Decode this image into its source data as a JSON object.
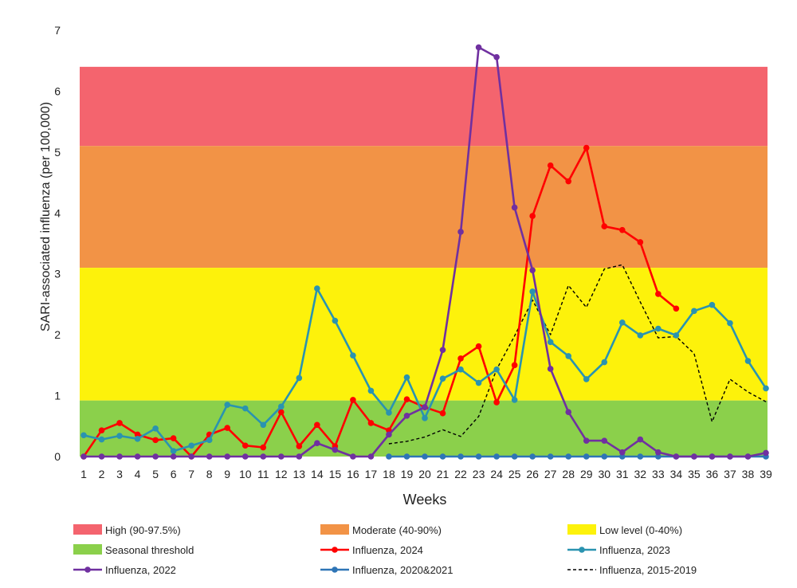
{
  "chart_data": {
    "type": "line",
    "xlabel": "Weeks",
    "ylabel": "SARI-associated influenza (per 100,000)",
    "xlim": [
      1,
      39
    ],
    "ylim": [
      0,
      7
    ],
    "x_ticks": [
      "1",
      "2",
      "3",
      "4",
      "5",
      "6",
      "7",
      "8",
      "9",
      "10",
      "11",
      "12",
      "13",
      "14",
      "15",
      "16",
      "17",
      "18",
      "19",
      "20",
      "21",
      "22",
      "23",
      "24",
      "25",
      "26",
      "27",
      "28",
      "29",
      "30",
      "31",
      "32",
      "33",
      "34",
      "35",
      "36",
      "37",
      "38",
      "39"
    ],
    "y_ticks": [
      "0",
      "1",
      "2",
      "3",
      "4",
      "5",
      "6",
      "7"
    ],
    "grid": false,
    "legend_position": "bottom",
    "bands": [
      {
        "name": "High (90-97.5%)",
        "from": 5.1,
        "to": 6.4,
        "color": "#f4646e"
      },
      {
        "name": "Moderate (40-90%)",
        "from": 3.1,
        "to": 5.1,
        "color": "#f29346"
      },
      {
        "name": "Low level (0-40%)",
        "from": 0.92,
        "to": 3.1,
        "color": "#fdf20b"
      },
      {
        "name": "Seasonal threshold",
        "from": 0,
        "to": 0.92,
        "color": "#8bd04b"
      }
    ],
    "series": [
      {
        "name": "Influenza, 2024",
        "color": "#ff0000",
        "style": "solid",
        "markers": true,
        "x": [
          1,
          2,
          3,
          4,
          5,
          6,
          7,
          8,
          9,
          10,
          11,
          12,
          13,
          14,
          15,
          16,
          17,
          18,
          19,
          20,
          21,
          22,
          23,
          24,
          25,
          26,
          27,
          28,
          29,
          30,
          31,
          32,
          33,
          34
        ],
        "y": [
          0,
          0.43,
          0.55,
          0.36,
          0.27,
          0.3,
          0,
          0.36,
          0.47,
          0.18,
          0.15,
          0.73,
          0.17,
          0.52,
          0.17,
          0.93,
          0.55,
          0.43,
          0.94,
          0.81,
          0.71,
          1.61,
          1.81,
          0.89,
          1.5,
          3.95,
          4.78,
          4.52,
          5.07,
          3.78,
          3.72,
          3.52,
          2.67,
          2.43
        ]
      },
      {
        "name": "Influenza, 2023",
        "color": "#2a93b0",
        "style": "solid",
        "markers": true,
        "x": [
          1,
          2,
          3,
          4,
          5,
          6,
          7,
          8,
          9,
          10,
          11,
          12,
          13,
          14,
          15,
          16,
          17,
          18,
          19,
          20,
          21,
          22,
          23,
          24,
          25,
          26,
          27,
          28,
          29,
          30,
          31,
          32,
          33,
          34,
          35,
          36,
          37,
          38,
          39
        ],
        "y": [
          0.35,
          0.28,
          0.34,
          0.29,
          0.46,
          0.09,
          0.18,
          0.27,
          0.85,
          0.79,
          0.52,
          0.82,
          1.29,
          2.76,
          2.23,
          1.66,
          1.08,
          0.72,
          1.3,
          0.63,
          1.28,
          1.43,
          1.21,
          1.43,
          0.93,
          2.71,
          1.88,
          1.65,
          1.27,
          1.55,
          2.2,
          1.99,
          2.1,
          1.99,
          2.39,
          2.49,
          2.19,
          1.57,
          1.12
        ]
      },
      {
        "name": "Influenza, 2022",
        "color": "#7030a0",
        "style": "solid",
        "markers": true,
        "x": [
          1,
          2,
          3,
          4,
          5,
          6,
          7,
          8,
          9,
          10,
          11,
          12,
          13,
          14,
          15,
          16,
          17,
          18,
          19,
          20,
          21,
          22,
          23,
          24,
          25,
          26,
          27,
          28,
          29,
          30,
          31,
          32,
          33,
          34,
          35,
          36,
          37,
          38,
          39
        ],
        "y": [
          0,
          0,
          0,
          0,
          0,
          0,
          0,
          0,
          0,
          0,
          0,
          0,
          0,
          0.22,
          0.11,
          0,
          0,
          0.36,
          0.67,
          0.81,
          1.75,
          3.69,
          6.72,
          6.56,
          4.09,
          3.06,
          1.44,
          0.73,
          0.26,
          0.26,
          0.07,
          0.28,
          0.07,
          0,
          0,
          0,
          0,
          0,
          0.06
        ]
      },
      {
        "name": "Influenza, 2020&2021",
        "color": "#2e75b6",
        "style": "solid",
        "markers": true,
        "x": [
          18,
          19,
          20,
          21,
          22,
          23,
          24,
          25,
          26,
          27,
          28,
          29,
          30,
          31,
          32,
          33,
          34,
          35,
          36,
          37,
          38,
          39
        ],
        "y": [
          0,
          0,
          0,
          0,
          0,
          0,
          0,
          0,
          0,
          0,
          0,
          0,
          0,
          0,
          0,
          0,
          0,
          0,
          0,
          0,
          0,
          0
        ]
      },
      {
        "name": "Influenza, 2015-2019",
        "color": "#000000",
        "style": "dashed",
        "markers": false,
        "x": [
          18,
          19,
          20,
          21,
          22,
          23,
          24,
          25,
          26,
          27,
          28,
          29,
          30,
          31,
          32,
          33,
          34,
          35,
          36,
          37,
          38,
          39
        ],
        "y": [
          0.21,
          0.25,
          0.32,
          0.44,
          0.33,
          0.66,
          1.43,
          1.98,
          2.57,
          2.0,
          2.81,
          2.45,
          3.08,
          3.15,
          2.54,
          1.95,
          1.97,
          1.69,
          0.57,
          1.27,
          1.06,
          0.9
        ]
      }
    ]
  }
}
